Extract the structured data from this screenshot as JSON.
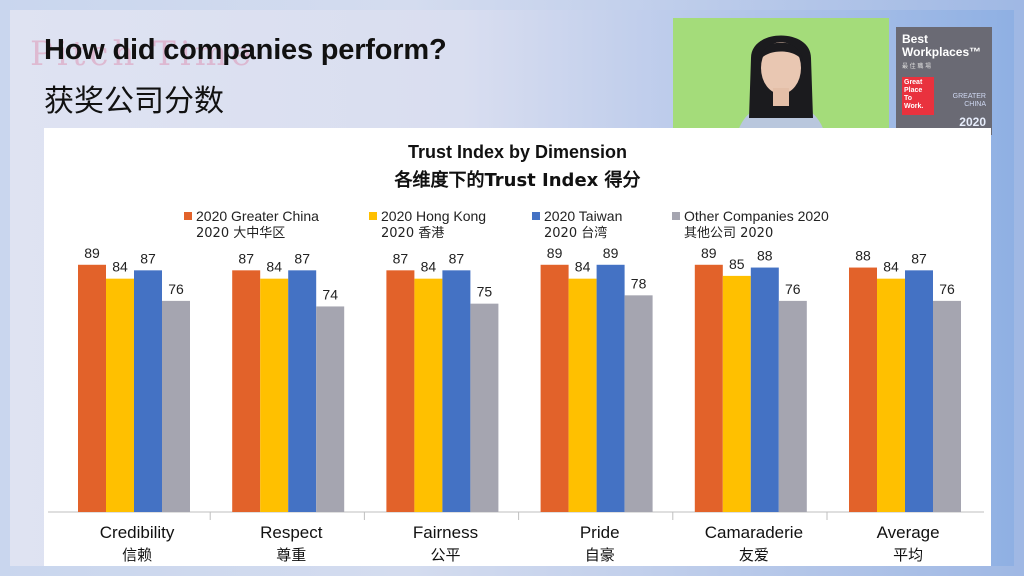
{
  "slide": {
    "title": "How did companies perform?",
    "subtitle": "获奖公司分数",
    "deco_text": "Pitch Time"
  },
  "badge": {
    "line1": "Best",
    "line2": "Workplaces™",
    "zh": "最 佳 職 場",
    "gptw": "Great Place To Work.",
    "region": "GREATER CHINA",
    "year": "2020"
  },
  "colors": {
    "series0": "#e2622a",
    "series1": "#ffc000",
    "series2": "#4472c4",
    "series3": "#a5a5b0",
    "webcam_bg": "#a4dc7a"
  },
  "chart_data": {
    "type": "bar",
    "title": "Trust Index by Dimension",
    "subtitle": "各维度下的Trust Index 得分",
    "categories": [
      "Credibility",
      "Respect",
      "Fairness",
      "Pride",
      "Camaraderie",
      "Average"
    ],
    "categories_zh": [
      "信赖",
      "尊重",
      "公平",
      "自豪",
      "友爱",
      "平均"
    ],
    "series": [
      {
        "name": "2020 Greater China",
        "name_zh": "2020 大中华区",
        "values": [
          89,
          87,
          87,
          89,
          89,
          88
        ]
      },
      {
        "name": "2020 Hong Kong",
        "name_zh": "2020 香港",
        "values": [
          84,
          84,
          84,
          84,
          85,
          84
        ]
      },
      {
        "name": "2020 Taiwan",
        "name_zh": "2020 台湾",
        "values": [
          87,
          87,
          87,
          89,
          88,
          87
        ]
      },
      {
        "name": "Other Companies 2020",
        "name_zh": "其他公司 2020",
        "values": [
          76,
          74,
          75,
          78,
          76,
          76
        ]
      }
    ],
    "ylim": [
      0,
      100
    ],
    "grid": false,
    "legend": "top"
  }
}
